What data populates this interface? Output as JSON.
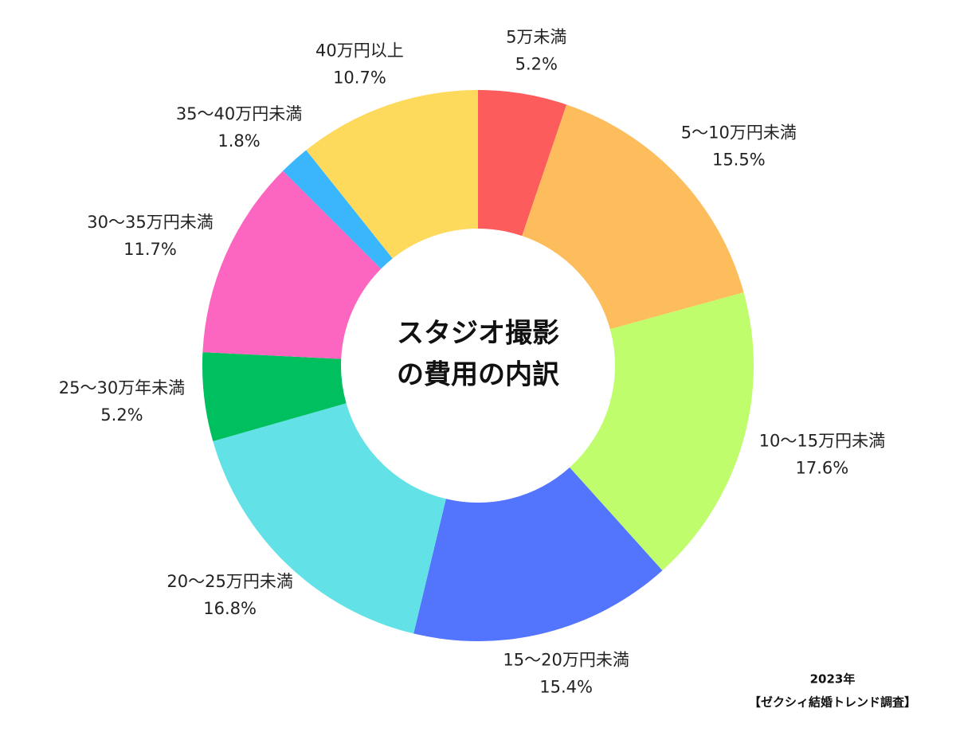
{
  "chart_data": {
    "type": "donut",
    "title": [
      "スタジオ撮影",
      "の費用の内訳"
    ],
    "categories": [
      "5万未満",
      "5～10万円未満",
      "10～15万円未満",
      "15～20万円未満",
      "20～25万円未満",
      "25～30万年未満",
      "30～35万円未満",
      "35～40万円未満",
      "40万円以上"
    ],
    "values": [
      5.2,
      15.5,
      17.6,
      15.4,
      16.8,
      5.2,
      11.7,
      1.8,
      10.7
    ],
    "value_labels": [
      "5.2%",
      "15.5%",
      "17.6%",
      "15.4%",
      "16.8%",
      "5.2%",
      "11.7%",
      "1.8%",
      "10.7%"
    ],
    "colors": [
      "#fd5c5c",
      "#fdbd5c",
      "#c0fd6c",
      "#5374fd",
      "#62e2e6",
      "#00bf5f",
      "#fd66c0",
      "#3ab6fd",
      "#fdd95c"
    ],
    "source": [
      "2023年",
      "【ゼクシィ結婚トレンド調査】"
    ]
  }
}
